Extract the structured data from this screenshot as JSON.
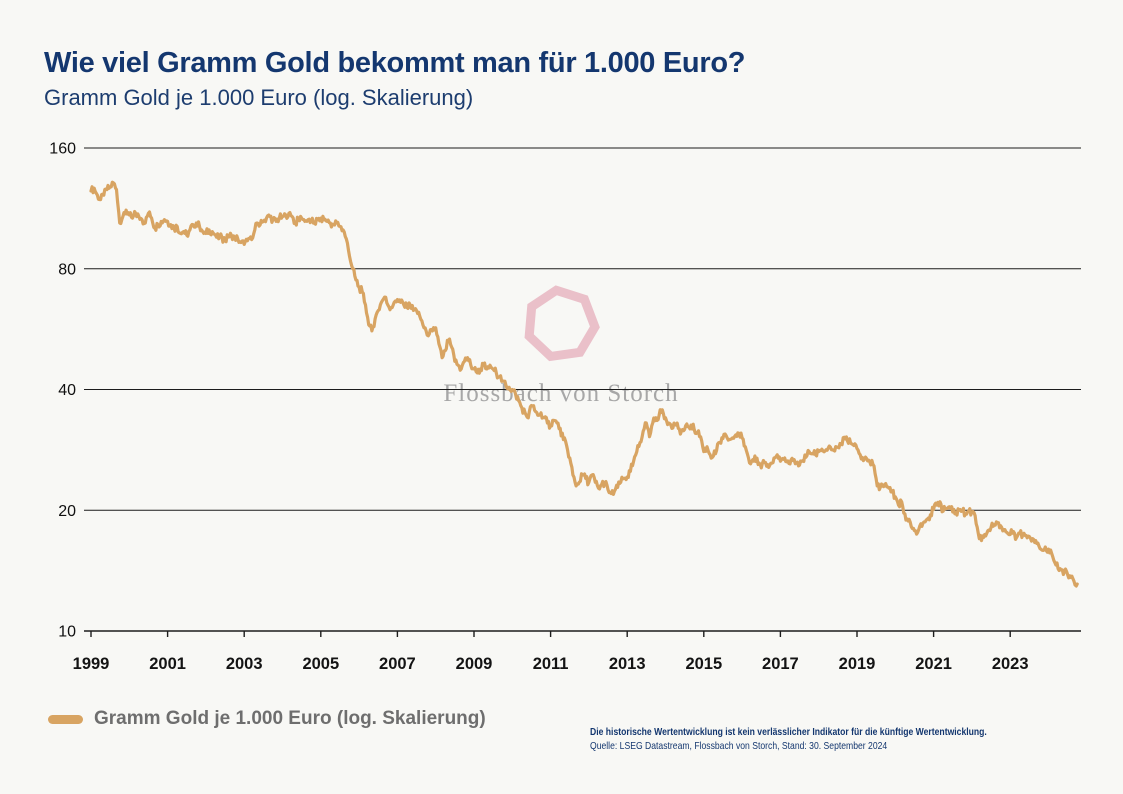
{
  "header": {
    "title": "Wie viel Gramm Gold bekommt man für 1.000 Euro?",
    "subtitle": "Gramm Gold je 1.000 Euro (log. Skalierung)"
  },
  "watermark": {
    "brand": "Flossbach von Storch",
    "logo": "heptagon-ring-icon",
    "logo_color": "#e6b3bf",
    "text_color": "#a7a7a7"
  },
  "legend": {
    "label": "Gramm Gold je 1.000 Euro (log. Skalierung)",
    "swatch_color": "#d8a462"
  },
  "footnote": {
    "disclaimer": "Die historische Wertentwicklung ist kein verlässlicher Indikator für die künftige Wertentwicklung.",
    "source": "Quelle: LSEG Datastream, Flossbach von Storch, Stand: 30. September 2024"
  },
  "colors": {
    "background": "#f8f8f5",
    "title": "#14376f",
    "axis": "#1c1c1c",
    "grid": "#1c1c1c",
    "line": "#d8a462",
    "legend_text": "#6e6e6e"
  },
  "chart_data": {
    "type": "line",
    "title": "Wie viel Gramm Gold bekommt man für 1.000 Euro?",
    "subtitle": "Gramm Gold je 1.000 Euro (log. Skalierung)",
    "grid": true,
    "legend_position": "bottom-left",
    "y_axis": {
      "label": "",
      "scale": "log",
      "ticks": [
        160,
        80,
        40,
        20,
        10
      ],
      "range": [
        10,
        160
      ]
    },
    "x_axis": {
      "label": "",
      "ticks": [
        1999,
        2001,
        2003,
        2005,
        2007,
        2009,
        2011,
        2013,
        2015,
        2017,
        2019,
        2021,
        2023
      ],
      "range": [
        1998.8,
        2024.9
      ]
    },
    "series": [
      {
        "name": "Gramm Gold je 1.000 Euro (log. Skalierung)",
        "color": "#d8a462",
        "unit": "Gramm Gold je 1.000 Euro",
        "start_year": 1999,
        "interval_months": 1,
        "values": [
          125,
          127,
          122,
          119,
          122,
          126,
          128,
          131,
          126,
          104,
          108,
          112,
          109,
          107,
          110,
          108,
          106,
          104,
          110,
          107,
          101,
          103,
          105,
          106,
          105,
          103,
          101,
          102,
          98,
          99,
          97,
          100,
          103,
          104,
          102,
          99,
          98,
          100,
          99,
          97,
          95,
          96,
          94,
          96,
          97,
          96,
          95,
          93,
          92,
          94,
          96,
          98,
          104,
          103,
          105,
          107,
          108,
          106,
          105,
          107,
          108,
          109,
          110,
          108,
          104,
          106,
          107,
          105,
          106,
          105,
          104,
          106,
          107,
          106,
          105,
          104,
          103,
          104,
          102,
          100,
          95,
          86,
          80,
          75,
          72,
          70,
          65,
          58,
          56,
          60,
          63,
          66,
          68,
          65,
          64,
          66,
          67,
          66,
          65,
          64,
          65,
          63,
          63,
          61,
          58,
          56,
          55,
          56,
          57,
          52,
          48,
          50,
          53,
          51,
          47,
          46,
          45,
          47,
          48,
          46,
          45,
          44,
          45,
          46,
          45,
          46,
          45,
          44,
          43,
          42,
          41,
          40.5,
          40,
          39,
          37.5,
          36,
          35,
          34,
          36.5,
          35.5,
          34.5,
          35,
          34,
          33,
          32.5,
          33.5,
          33,
          32,
          30,
          29,
          27,
          24.5,
          23,
          23.5,
          24.5,
          24,
          23.5,
          24.5,
          23.5,
          22.7,
          23.2,
          23.5,
          22.5,
          22,
          22.3,
          22.8,
          23.5,
          24,
          24.2,
          25,
          26.5,
          28,
          29.5,
          31.5,
          33,
          30.5,
          33,
          34,
          34.5,
          35.6,
          34,
          33,
          32,
          32.8,
          32,
          31.5,
          31.8,
          32.3,
          32.6,
          31.8,
          31.2,
          30.5,
          28,
          28.8,
          27.5,
          27.3,
          28.2,
          29.5,
          30.2,
          30.7,
          30,
          30.3,
          30.8,
          31.1,
          30.3,
          28.8,
          27,
          26.5,
          27.3,
          26,
          25.5,
          26.3,
          26,
          26.2,
          27,
          27.5,
          26.5,
          26.8,
          26.4,
          26.1,
          26.6,
          26.3,
          25.9,
          26.6,
          27.1,
          28,
          27.7,
          27.5,
          28,
          28.4,
          28.1,
          28.6,
          28.3,
          28.1,
          28.7,
          29.3,
          30.4,
          29.8,
          29.4,
          29,
          28.5,
          27.5,
          26.6,
          26.9,
          26.4,
          26,
          24,
          22.5,
          23,
          23.3,
          22.7,
          22.2,
          21.6,
          20.6,
          21,
          19.6,
          18.8,
          18.2,
          17.8,
          17.6,
          18.5,
          18.7,
          19,
          19.5,
          20.1,
          20.6,
          21,
          19.9,
          20.2,
          20.4,
          19.8,
          19.7,
          20,
          19.9,
          19.6,
          19.9,
          19.8,
          19.4,
          17.5,
          16.8,
          17.4,
          17.8,
          18.1,
          18.4,
          18.6,
          18.3,
          17.9,
          17.6,
          17.4,
          17.7,
          17.1,
          17.5,
          17.4,
          17.3,
          17.2,
          17,
          16.8,
          16.3,
          15.9,
          16.2,
          16,
          15.6,
          14.8,
          14.3,
          14.2,
          14.1,
          13.8,
          13.6,
          13.3,
          13.1
        ]
      }
    ]
  }
}
